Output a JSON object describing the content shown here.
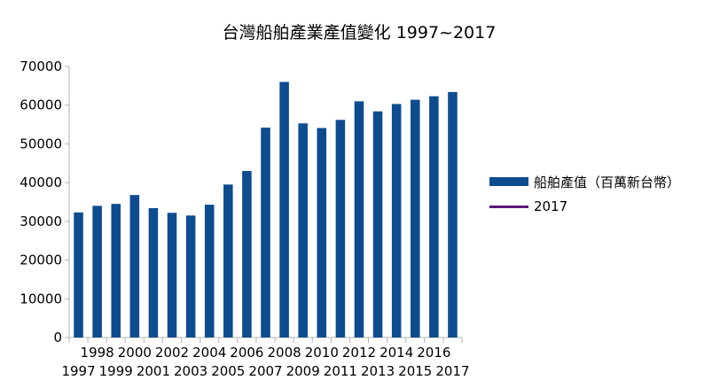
{
  "chart_data": {
    "type": "bar",
    "title": "台灣船舶產業產值變化 1997~2017",
    "categories": [
      "1997",
      "1998",
      "1999",
      "2000",
      "2001",
      "2002",
      "2003",
      "2004",
      "2005",
      "2006",
      "2007",
      "2008",
      "2009",
      "2010",
      "2011",
      "2012",
      "2013",
      "2014",
      "2015",
      "2016",
      "2017"
    ],
    "y_ticks": [
      "0",
      "10000",
      "20000",
      "30000",
      "40000",
      "50000",
      "60000",
      "70000"
    ],
    "ylim": [
      0,
      70000
    ],
    "grid": false,
    "legend_position": "right",
    "series": [
      {
        "name": "船舶產值（百萬新台幣）",
        "color": "#0d4c8f",
        "values": [
          32300,
          34000,
          34500,
          36800,
          33400,
          32200,
          31500,
          34300,
          39500,
          43000,
          54200,
          66000,
          55300,
          54100,
          56200,
          61000,
          58400,
          60300,
          61400,
          62300,
          63400
        ]
      }
    ],
    "legend": [
      {
        "label": "船舶產值（百萬新台幣）",
        "color": "#0d4c8f",
        "kind": "bar"
      },
      {
        "label": "2017",
        "color": "#5a1a7a",
        "kind": "line"
      }
    ]
  }
}
